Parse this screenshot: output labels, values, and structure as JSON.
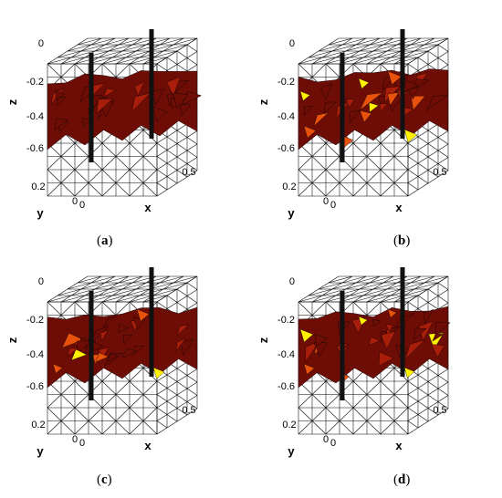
{
  "panels": [
    {
      "caption_open": "(",
      "caption_letter": "a",
      "caption_close": ")",
      "yellow_level": 0.0
    },
    {
      "caption_open": "(",
      "caption_letter": "b",
      "caption_close": ")",
      "yellow_level": 0.55
    },
    {
      "caption_open": "(",
      "caption_letter": "c",
      "caption_close": ")",
      "yellow_level": 0.35
    },
    {
      "caption_open": "(",
      "caption_letter": "d",
      "caption_close": ")",
      "yellow_level": 0.6
    }
  ],
  "axes": {
    "z_name": "z",
    "x_name": "x",
    "y_name": "y",
    "z_ticks": [
      "0",
      "-0.2",
      "-0.4",
      "-0.6"
    ],
    "x_ticks": [
      "0",
      "0.5"
    ],
    "y_ticks": [
      "0.2",
      "0"
    ]
  },
  "colors": {
    "mesh": "#000000",
    "dark_red": "#6e0d06",
    "red": "#a81e0a",
    "orange": "#e8520c",
    "yellow": "#fff200",
    "electrode": "#111111"
  }
}
